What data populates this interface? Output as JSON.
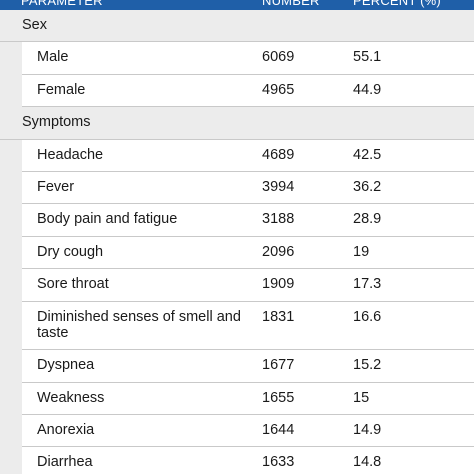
{
  "header": {
    "parameter": "PARAMETER",
    "number": "NUMBER",
    "percent": "PERCENT (%)"
  },
  "sections": [
    {
      "title": "Sex",
      "rows": [
        {
          "label": "Male",
          "number": "6069",
          "percent": "55.1"
        },
        {
          "label": "Female",
          "number": "4965",
          "percent": "44.9"
        }
      ]
    },
    {
      "title": "Symptoms",
      "rows": [
        {
          "label": "Headache",
          "number": "4689",
          "percent": "42.5"
        },
        {
          "label": "Fever",
          "number": "3994",
          "percent": "36.2"
        },
        {
          "label": "Body pain and fatigue",
          "number": "3188",
          "percent": "28.9"
        },
        {
          "label": "Dry cough",
          "number": "2096",
          "percent": "19"
        },
        {
          "label": "Sore throat",
          "number": "1909",
          "percent": "17.3"
        },
        {
          "label": "Diminished senses of smell and taste",
          "number": "1831",
          "percent": "16.6"
        },
        {
          "label": "Dyspnea",
          "number": "1677",
          "percent": "15.2"
        },
        {
          "label": "Weakness",
          "number": "1655",
          "percent": "15"
        },
        {
          "label": "Anorexia",
          "number": "1644",
          "percent": "14.9"
        },
        {
          "label": "Diarrhea",
          "number": "1633",
          "percent": "14.8"
        }
      ]
    }
  ]
}
